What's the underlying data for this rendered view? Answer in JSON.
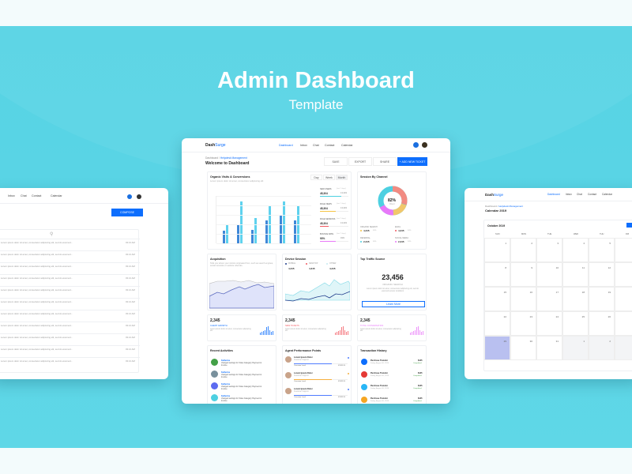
{
  "hero": {
    "title": "Admin Dashboard",
    "subtitle": "Template"
  },
  "app": {
    "logo_a": "Dash",
    "logo_b": "Surge",
    "nav": [
      "Dashboard",
      "Inbox",
      "Chat",
      "Contact",
      "Calendar"
    ],
    "accent": "#0d6efd"
  },
  "main": {
    "breadcrumb": [
      "Dashboard",
      "Helpdesk Management"
    ],
    "title": "Welcome to Dashboard",
    "buttons": [
      "SAVE",
      "EXPORT",
      "SHARE",
      "+ ADD NEW TICKET"
    ],
    "organic": {
      "title": "Organic Visits & Conversions",
      "subtitle": "Lorem ipsum dolor sit amet, consectetur adipiscing elit",
      "tabs": [
        "Day",
        "Week",
        "Month"
      ],
      "stats": [
        {
          "label": "NEW USERS",
          "note": "(last 7 days)",
          "value": "45,304",
          "right": "13,303",
          "color": "#4dd0e1",
          "fill": 0.75
        },
        {
          "label": "PAGE VIEWS",
          "note": "(last 7 days)",
          "value": "45,304",
          "right": "13,303",
          "color": "#f6c343",
          "fill": 0.55
        },
        {
          "label": "PAGE SESSIONS",
          "note": "(last 7 days)",
          "value": "45,304",
          "right": "13,303",
          "color": "#f25961",
          "fill": 0.3
        },
        {
          "label": "BOUNCE RATE",
          "note": "(last 7 days)",
          "value": "93%",
          "right": "93%",
          "color": "#e879f9",
          "fill": 0.55
        }
      ]
    },
    "sessions": {
      "title": "Session By Channel",
      "center_value": "82%",
      "center_label": "Direct",
      "legend": [
        {
          "label": "ORGANIC SEARCH",
          "value": "4,345",
          "pct": "34%",
          "color": "#f6c343"
        },
        {
          "label": "EMAIL",
          "value": "4,345",
          "pct": "34%",
          "color": "#f25961"
        },
        {
          "label": "REFERRAL",
          "value": "2,345",
          "pct": "34%",
          "color": "#4dd0e1"
        },
        {
          "label": "SOCIAL MEDIA",
          "value": "2,345",
          "pct": "34%",
          "color": "#e879f9"
        }
      ]
    },
    "acquisition": {
      "title": "Acquisition",
      "text": "Tells you where your visitors originated from, such as search engines, social networks or website referrals."
    },
    "device": {
      "title": "Device Session",
      "legend": [
        {
          "label": "MOBILE",
          "value": "4,345",
          "color": "#1e3a8a"
        },
        {
          "label": "DESKTOP",
          "value": "4,345",
          "color": "#f25961"
        },
        {
          "label": "OTHER",
          "value": "4,345",
          "color": "#c7e9f0"
        }
      ]
    },
    "traffic": {
      "title": "Top Traffic Source",
      "value": "23,456",
      "label": "ORGANIC SEARCH",
      "text": "Lorem ipsum dolor sit amet, consectetur adipiscing elit, sed do eiusmod tempor incididunt",
      "button": "Learn More"
    },
    "kpis": [
      {
        "value": "2,345",
        "label": "CLIENT GROWTH",
        "text": "Lorem ipsum dolor sit amet, consectetur adipiscing elit",
        "color": "#0d6efd"
      },
      {
        "value": "2,345",
        "label": "NEW TICKETS",
        "text": "Lorem ipsum dolor sit amet, consectetur adipiscing elit",
        "color": "#f25961"
      },
      {
        "value": "2,345",
        "label": "TOTAL CONVERSATION",
        "text": "Lorem ipsum dolor sit amet, consectetur adipiscing elit",
        "color": "#e879f9"
      }
    ],
    "activities": {
      "title": "Recent Activities",
      "items": [
        {
          "name": "Katherine",
          "text": "changed settings for Video Category Payment & Invoice",
          "color": "#43a047"
        },
        {
          "name": "Katherine",
          "text": "changed settings for Video Category Payment & Invoice",
          "color": "#78909c"
        },
        {
          "name": "Katherine",
          "text": "changed settings for Video Category Payment & Invoice",
          "color": "#5c6bf0"
        },
        {
          "name": "Katherine",
          "text": "changed settings for Video Category Payment & Invoice",
          "color": "#4dd0e1"
        }
      ]
    },
    "agents": {
      "title": "Agent Performance Points",
      "items": [
        {
          "name": "Lorem Ipsum Dolor",
          "sub": "Customer Support",
          "footer": "Overview Level",
          "right": "375/1125",
          "color": "#4f7cff"
        },
        {
          "name": "Lorem Ipsum Dolor",
          "sub": "Customer Support",
          "footer": "Overview Level",
          "right": "375/1125",
          "color": "#f6b03f"
        },
        {
          "name": "Lorem Ipsum Dolor",
          "sub": "Customer Support",
          "footer": "Overview Level",
          "right": "375/1125",
          "color": "#4f7cff"
        }
      ]
    },
    "transactions": {
      "title": "Transaction History",
      "items": [
        {
          "name": "Purchase Transfer",
          "date": "Friday, August 30, 2019",
          "amount": "$145",
          "status": "Completed",
          "color": "#0d6efd"
        },
        {
          "name": "Purchase Transfer",
          "date": "Friday, August 30, 2019",
          "amount": "$145",
          "status": "Completed",
          "color": "#e53935"
        },
        {
          "name": "Purchase Transfer",
          "date": "Friday, August 30, 2019",
          "amount": "$145",
          "status": "Completed",
          "color": "#29b6f6"
        },
        {
          "name": "Purchase Transfer",
          "date": "Friday, August 30, 2019",
          "amount": "$145",
          "status": "Completed",
          "color": "#f6a623"
        }
      ]
    }
  },
  "inbox": {
    "nav": [
      "Inbox",
      "Chat",
      "Contact",
      "Calendar"
    ],
    "compose": "COMPOSE",
    "row_text": "Lorem ipsum dolor sit amet, consectetur adipiscing elit, sed do eiusmod...",
    "row_time": "03:21 AM"
  },
  "calendar": {
    "breadcrumb": [
      "Dashboard",
      "Helpdesk Management"
    ],
    "title": "Calendar 2019",
    "month": "October 2019",
    "days": [
      "SUN",
      "MON",
      "TUE",
      "WED",
      "THU",
      "FRI"
    ],
    "weeks": [
      [
        "1",
        "2",
        "3",
        "4",
        "5",
        ""
      ],
      [
        "8",
        "9",
        "10",
        "11",
        "12",
        ""
      ],
      [
        "15",
        "16",
        "17",
        "18",
        "19",
        ""
      ],
      [
        "22",
        "23",
        "24",
        "25",
        "26",
        ""
      ],
      [
        "29",
        "30",
        "31",
        "1",
        "2",
        ""
      ]
    ]
  },
  "chart_data": {
    "type": "bar",
    "series": [
      {
        "values": [
          13,
          20,
          14,
          24,
          30,
          24
        ]
      },
      {
        "values": [
          20,
          44,
          27,
          39,
          44,
          39
        ]
      }
    ],
    "colors": [
      "#3f88d8",
      "#5fd2ee"
    ]
  }
}
